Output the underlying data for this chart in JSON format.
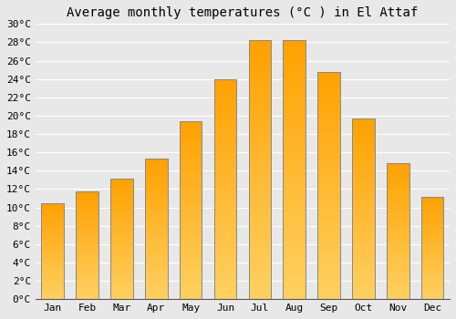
{
  "title": "Average monthly temperatures (°C ) in El Attaf",
  "months": [
    "Jan",
    "Feb",
    "Mar",
    "Apr",
    "May",
    "Jun",
    "Jul",
    "Aug",
    "Sep",
    "Oct",
    "Nov",
    "Dec"
  ],
  "values": [
    10.5,
    11.7,
    13.1,
    15.3,
    19.4,
    24.0,
    28.2,
    28.2,
    24.8,
    19.7,
    14.8,
    11.1
  ],
  "bar_color_light": "#FFD060",
  "bar_color_dark": "#FFA000",
  "bar_edge_color": "#888888",
  "background_color": "#e8e8e8",
  "grid_color": "#ffffff",
  "title_fontsize": 10,
  "tick_fontsize": 8,
  "ylim": [
    0,
    30
  ],
  "ytick_step": 2,
  "figsize": [
    5.0,
    3.5
  ],
  "dpi": 100
}
